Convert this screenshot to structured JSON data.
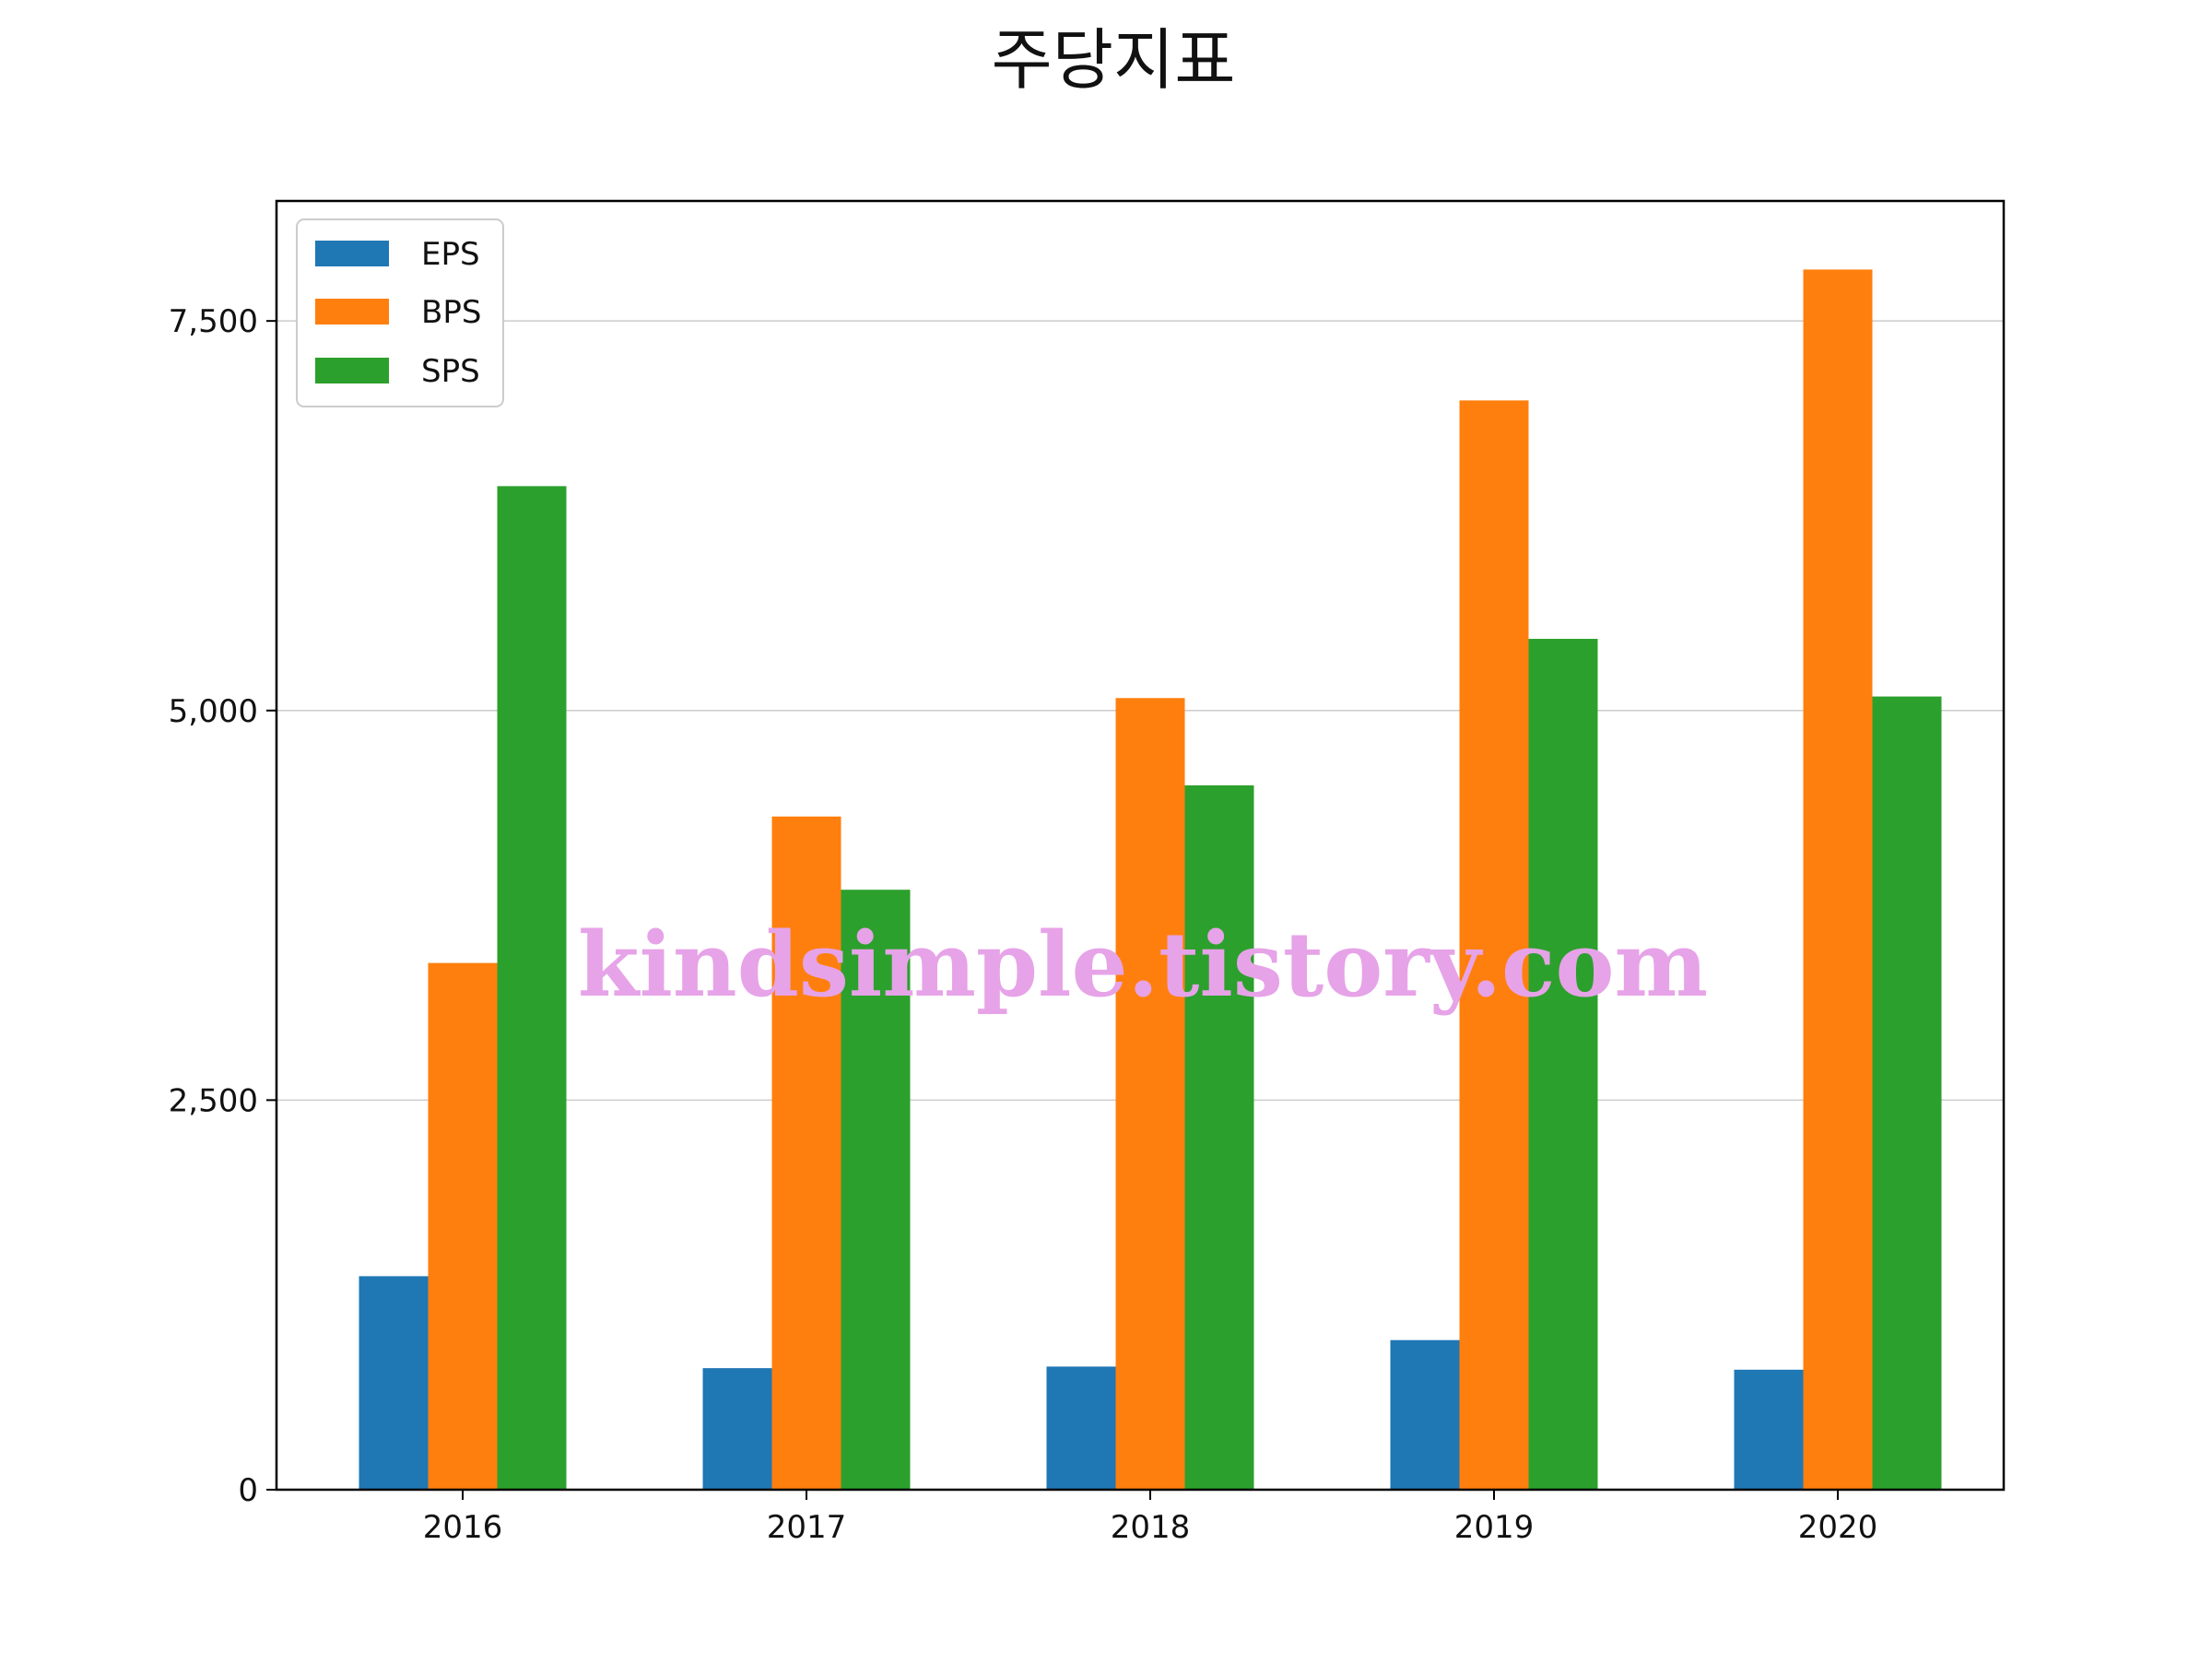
{
  "title": "주당지표",
  "watermark": "kindsimple.tistory.com",
  "chart_data": {
    "type": "bar",
    "title": "주당지표",
    "xlabel": "",
    "ylabel": "",
    "categories": [
      "2016",
      "2017",
      "2018",
      "2019",
      "2020"
    ],
    "series": [
      {
        "name": "EPS",
        "color": "#1f77b4",
        "values": [
          1370,
          780,
          790,
          960,
          770
        ]
      },
      {
        "name": "BPS",
        "color": "#ff7f0e",
        "values": [
          3380,
          4320,
          5080,
          6990,
          7830
        ]
      },
      {
        "name": "SPS",
        "color": "#2ca02c",
        "values": [
          6440,
          3850,
          4520,
          5460,
          5090
        ]
      }
    ],
    "ylim": [
      0,
      8270
    ],
    "yticks": [
      0,
      2500,
      5000,
      7500
    ],
    "ytick_labels": [
      "0",
      "2,500",
      "5,000",
      "7,500"
    ],
    "grid": "horizontal",
    "legend_position": "upper-left"
  }
}
